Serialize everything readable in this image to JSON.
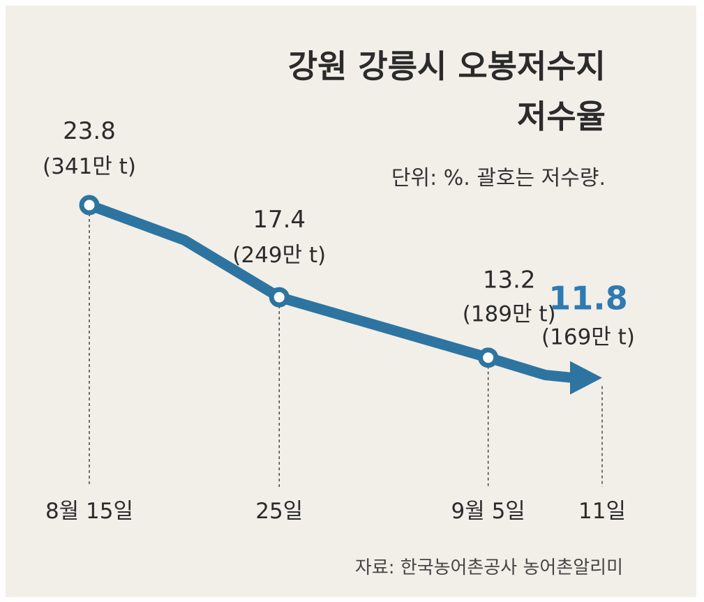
{
  "chart_data": {
    "type": "line",
    "title_lines": [
      "강원 강릉시 오봉저수지",
      "저수율"
    ],
    "unit_note": "단위: %. 괄호는 저수량.",
    "source": "자료: 한국농어촌공사 농어촌알리미",
    "accent_color": "#2e74a0",
    "highlight_color": "#2f7ab0",
    "points": [
      {
        "date": "8월 15일",
        "day": 0,
        "value": 23.8,
        "value_label": "23.8",
        "volume_label": "(341만 t)",
        "marker": "circle"
      },
      {
        "date": "25일",
        "day": 10,
        "value": 17.4,
        "value_label": "17.4",
        "volume_label": "(249만 t)",
        "marker": "circle"
      },
      {
        "date": "9월 5일",
        "day": 21,
        "value": 13.2,
        "value_label": "13.2",
        "volume_label": "(189만 t)",
        "marker": "circle"
      },
      {
        "date": "11일",
        "day": 27,
        "value": 11.8,
        "value_label": "11.8",
        "volume_label": "(169만 t)",
        "marker": "arrow"
      }
    ],
    "ylim": [
      8,
      27
    ]
  }
}
